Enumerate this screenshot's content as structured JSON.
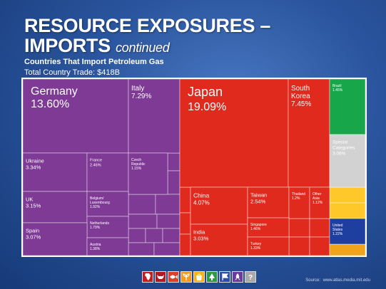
{
  "slide": {
    "title": "RESOURCE EXPOSURES –",
    "title_line2": "IMPORTS",
    "title_suffix": "continued",
    "subtitle": "Countries That Import Petroleum Gas",
    "total_trade": "Total Country Trade: $418B"
  },
  "source": {
    "label": "Source:",
    "url": "www.atlas.media.mit.edu"
  },
  "colors": {
    "europe": "#7e3a95",
    "asia": "#e02a1e",
    "americas_south": "#18a64a",
    "other": "#d2d2d2",
    "americas_north": "#1f3fa0",
    "africa": "#f0a41c",
    "oceania": "#ffc82a"
  },
  "icon_bar": [
    {
      "name": "africa-icon",
      "color": "#c21f1f"
    },
    {
      "name": "bull-icon",
      "color": "#b01a24"
    },
    {
      "name": "fish-icon",
      "color": "#d9412a"
    },
    {
      "name": "plant-icon",
      "color": "#f19a22"
    },
    {
      "name": "shopping-bag-icon",
      "color": "#f5b21f"
    },
    {
      "name": "tree-icon",
      "color": "#2d9b46"
    },
    {
      "name": "flag-icon",
      "color": "#2b4fa8"
    },
    {
      "name": "rocket-icon",
      "color": "#6b3aa0"
    },
    {
      "name": "question-icon",
      "color": "#a9a9a9"
    }
  ],
  "chart_data": {
    "type": "treemap",
    "title": "Countries That Import Petroleum Gas",
    "total": "$418B",
    "unit": "% of imports",
    "items": [
      {
        "name": "Germany",
        "value": 13.6,
        "label": "13.60%",
        "region": "europe"
      },
      {
        "name": "Italy",
        "value": 7.29,
        "label": "7.29%",
        "region": "europe"
      },
      {
        "name": "Ukraine",
        "value": 3.34,
        "label": "3.34%",
        "region": "europe"
      },
      {
        "name": "France",
        "value": 2.46,
        "label": "2.46%",
        "region": "europe"
      },
      {
        "name": "Czech Republic",
        "value": 1.15,
        "label": "1.15%",
        "region": "europe"
      },
      {
        "name": "UK",
        "value": 3.15,
        "label": "3.15%",
        "region": "europe"
      },
      {
        "name": "Belgium/ Luxembourg",
        "value": 1.92,
        "label": "1.92%",
        "region": "europe"
      },
      {
        "name": "Netherlands",
        "value": 1.79,
        "label": "1.79%",
        "region": "europe"
      },
      {
        "name": "Spain",
        "value": 3.07,
        "label": "3.07%",
        "region": "europe"
      },
      {
        "name": "Austria",
        "value": 1.38,
        "label": "1.38%",
        "region": "europe"
      },
      {
        "name": "Japan",
        "value": 19.09,
        "label": "19.09%",
        "region": "asia"
      },
      {
        "name": "South Korea",
        "value": 7.45,
        "label": "7.45%",
        "region": "asia"
      },
      {
        "name": "China",
        "value": 4.07,
        "label": "4.07%",
        "region": "asia"
      },
      {
        "name": "Taiwan",
        "value": 2.54,
        "label": "2.54%",
        "region": "asia"
      },
      {
        "name": "Thailand",
        "value": 1.2,
        "label": "1.2%",
        "region": "asia"
      },
      {
        "name": "Other Asia",
        "value": 1.12,
        "label": "1.12%",
        "region": "asia"
      },
      {
        "name": "India",
        "value": 3.03,
        "label": "3.03%",
        "region": "asia"
      },
      {
        "name": "Singapore",
        "value": 1.46,
        "label": "1.46%",
        "region": "asia"
      },
      {
        "name": "Turkey",
        "value": 1.33,
        "label": "1.33%",
        "region": "asia"
      },
      {
        "name": "Brazil",
        "value": 1.45,
        "label": "1.45%",
        "region": "americas_south"
      },
      {
        "name": "Special Categories",
        "value": 3.06,
        "label": "3.06%",
        "region": "other"
      },
      {
        "name": "United States",
        "value": 1.22,
        "label": "1.22%",
        "region": "americas_north"
      }
    ]
  }
}
